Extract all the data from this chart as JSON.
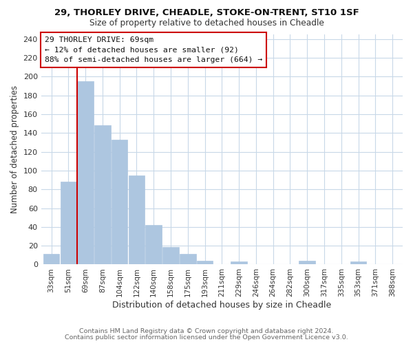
{
  "title_line1": "29, THORLEY DRIVE, CHEADLE, STOKE-ON-TRENT, ST10 1SF",
  "title_line2": "Size of property relative to detached houses in Cheadle",
  "xlabel": "Distribution of detached houses by size in Cheadle",
  "ylabel": "Number of detached properties",
  "bar_labels": [
    "33sqm",
    "51sqm",
    "69sqm",
    "87sqm",
    "104sqm",
    "122sqm",
    "140sqm",
    "158sqm",
    "175sqm",
    "193sqm",
    "211sqm",
    "229sqm",
    "246sqm",
    "264sqm",
    "282sqm",
    "300sqm",
    "317sqm",
    "335sqm",
    "353sqm",
    "371sqm",
    "388sqm"
  ],
  "bar_values": [
    11,
    88,
    195,
    148,
    133,
    95,
    42,
    19,
    11,
    4,
    0,
    3,
    0,
    0,
    0,
    4,
    0,
    0,
    3,
    0,
    0
  ],
  "bar_color": "#adc6e0",
  "vline_index": 2,
  "vline_color": "#cc0000",
  "annotation_title": "29 THORLEY DRIVE: 69sqm",
  "annotation_line1": "← 12% of detached houses are smaller (92)",
  "annotation_line2": "88% of semi-detached houses are larger (664) →",
  "annotation_box_facecolor": "#ffffff",
  "annotation_box_edgecolor": "#cc0000",
  "ylim": [
    0,
    245
  ],
  "yticks": [
    0,
    20,
    40,
    60,
    80,
    100,
    120,
    140,
    160,
    180,
    200,
    220,
    240
  ],
  "footer_line1": "Contains HM Land Registry data © Crown copyright and database right 2024.",
  "footer_line2": "Contains public sector information licensed under the Open Government Licence v3.0.",
  "fig_bg_color": "#ffffff",
  "plot_bg_color": "#ffffff",
  "grid_color": "#c8d8e8"
}
